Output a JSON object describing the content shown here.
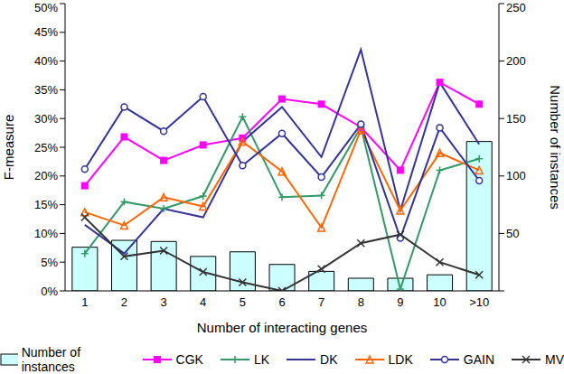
{
  "chart_data": {
    "type": "bar_line",
    "x_label": "Number of interacting genes",
    "y_label": "F-measure",
    "y2_label": "Number of instances",
    "categories": [
      "1",
      "2",
      "3",
      "4",
      "5",
      "6",
      "7",
      "8",
      "9",
      "10",
      ">10"
    ],
    "ylim": [
      0,
      50
    ],
    "yticks": [
      {
        "value": 0,
        "label": "0%"
      },
      {
        "value": 5,
        "label": "5%"
      },
      {
        "value": 10,
        "label": "10%"
      },
      {
        "value": 15,
        "label": "15%"
      },
      {
        "value": 20,
        "label": "20%"
      },
      {
        "value": 25,
        "label": "25%"
      },
      {
        "value": 30,
        "label": "30%"
      },
      {
        "value": 35,
        "label": "35%"
      },
      {
        "value": 40,
        "label": "40%"
      },
      {
        "value": 45,
        "label": "45%"
      },
      {
        "value": 50,
        "label": "50%"
      }
    ],
    "y2lim": [
      0,
      250
    ],
    "y2ticks": [
      0,
      50,
      100,
      150,
      200,
      250
    ],
    "grid": false,
    "legend": "bottom",
    "series": [
      {
        "name": "Number of instances",
        "type": "bar",
        "axis": "y2",
        "color": "#ccffff",
        "values": [
          38,
          44,
          43,
          30,
          34,
          23,
          17,
          11,
          11,
          14,
          130
        ]
      },
      {
        "name": "CGK",
        "type": "line",
        "color": "#ff00ff",
        "marker": "square",
        "values": [
          18.3,
          26.8,
          22.7,
          25.4,
          26.6,
          33.4,
          32.5,
          28.5,
          21,
          36.3,
          32.5
        ]
      },
      {
        "name": "LK",
        "type": "line",
        "color": "#339966",
        "marker": "plus",
        "values": [
          6.5,
          15.5,
          14.3,
          16.5,
          30.3,
          16.3,
          16.6,
          28.5,
          0.3,
          21,
          23
        ]
      },
      {
        "name": "DK",
        "type": "line",
        "color": "#333399",
        "marker": "none",
        "values": [
          11.5,
          6.5,
          14.3,
          12.8,
          26,
          32,
          23.3,
          42,
          14,
          36.3,
          25.5
        ]
      },
      {
        "name": "LDK",
        "type": "line",
        "color": "#ff6600",
        "marker": "triangle",
        "values": [
          13.7,
          11.4,
          16.3,
          14.7,
          26,
          20.8,
          11,
          28,
          14,
          24,
          21
        ]
      },
      {
        "name": "GAIN",
        "type": "line",
        "color": "#333399",
        "marker": "circle",
        "values": [
          21.2,
          32,
          27.8,
          33.8,
          21.8,
          27.4,
          19.8,
          29,
          9.2,
          28.4,
          19.2
        ]
      },
      {
        "name": "MV",
        "type": "line",
        "color": "#333333",
        "marker": "x",
        "values": [
          12.8,
          6,
          7,
          3.3,
          1.5,
          0,
          3.8,
          8.3,
          9.8,
          5,
          2.8
        ]
      }
    ]
  }
}
